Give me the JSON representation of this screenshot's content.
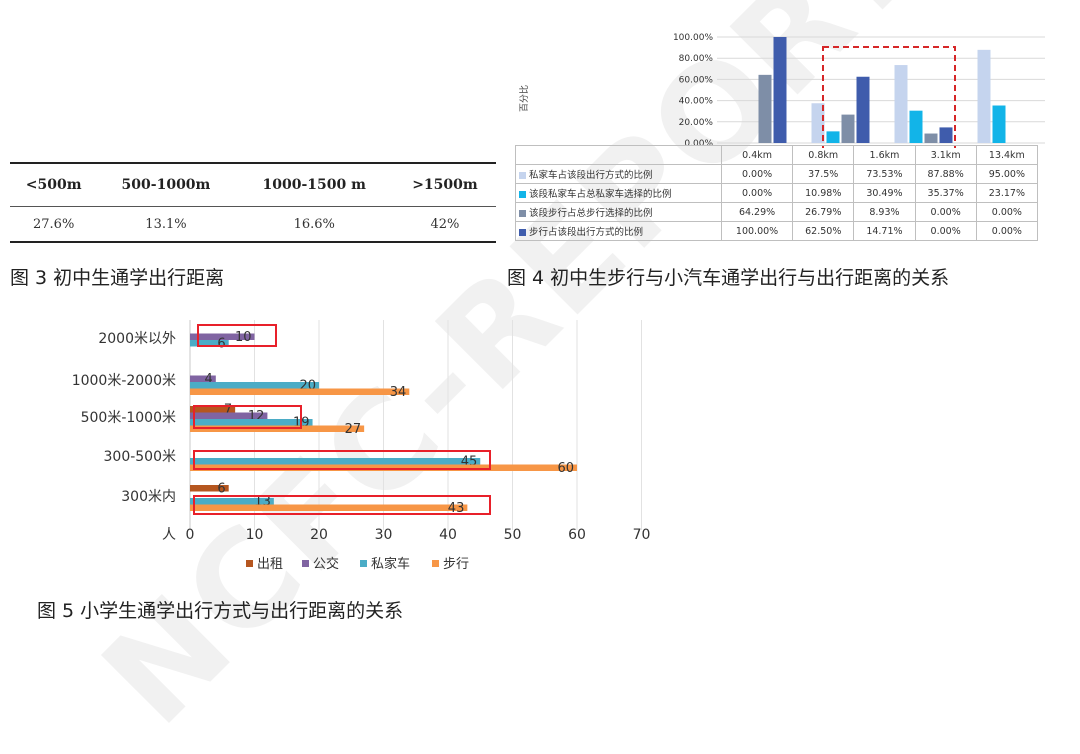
{
  "watermark": "NCFC-REPORT",
  "fig3": {
    "caption": "图 3 初中生通学出行距离",
    "headers": [
      "<500m",
      "500-1000m",
      "1000-1500 m",
      ">1500m"
    ],
    "values": [
      "27.6%",
      "13.1%",
      "16.6%",
      "42%"
    ]
  },
  "fig4": {
    "caption": "图 4 初中生步行与小汽车通学出行与出行距离的关系",
    "ylabel": "百分比",
    "chart_data": {
      "type": "bar",
      "categories": [
        "0.4km",
        "0.8km",
        "1.6km",
        "3.1km",
        "13.4km"
      ],
      "y_ticks": [
        "0.00%",
        "20.00%",
        "40.00%",
        "60.00%",
        "80.00%",
        "100.00%"
      ],
      "ylim": [
        0,
        100
      ],
      "series": [
        {
          "name": "私家车占该段出行方式的比例",
          "values": [
            0,
            37.5,
            73.53,
            87.88,
            95.0
          ],
          "labels": [
            "0.00%",
            "37.5%",
            "73.53%",
            "87.88%",
            "95.00%"
          ],
          "color": "#c5d4ee"
        },
        {
          "name": "该段私家车占总私家车选择的比例",
          "values": [
            0,
            10.98,
            30.49,
            35.37,
            23.17
          ],
          "labels": [
            "0.00%",
            "10.98%",
            "30.49%",
            "35.37%",
            "23.17%"
          ],
          "color": "#12b4e8"
        },
        {
          "name": "该段步行占总步行选择的比例",
          "values": [
            64.29,
            26.79,
            8.93,
            0,
            0
          ],
          "labels": [
            "64.29%",
            "26.79%",
            "8.93%",
            "0.00%",
            "0.00%"
          ],
          "color": "#7e8ea7"
        },
        {
          "name": "步行占该段出行方式的比例",
          "values": [
            100,
            62.5,
            14.71,
            0,
            0
          ],
          "labels": [
            "100.00%",
            "62.50%",
            "14.71%",
            "0.00%",
            "0.00%"
          ],
          "color": "#3f5cac"
        }
      ]
    }
  },
  "fig5": {
    "caption": "图 5  小学生通学出行方式与出行距离的关系",
    "chart_data": {
      "type": "bar",
      "orientation": "horizontal",
      "xlabel": "人",
      "xlim": [
        0,
        70
      ],
      "x_ticks": [
        0,
        10,
        20,
        30,
        40,
        50,
        60,
        70
      ],
      "grid": true,
      "legend_position": "bottom",
      "categories": [
        "2000米以外",
        "1000米-2000米",
        "500米-1000米",
        "300-500米",
        "300米内"
      ],
      "series": [
        {
          "name": "出租",
          "values": [
            0,
            0,
            7,
            0,
            6
          ],
          "labels": [
            "",
            "",
            "7",
            "",
            "6"
          ],
          "color": "#b5561f"
        },
        {
          "name": "公交",
          "values": [
            10,
            4,
            12,
            0,
            0
          ],
          "labels": [
            "10",
            "4",
            "12",
            "",
            ""
          ],
          "color": "#8064a2"
        },
        {
          "name": "私家车",
          "values": [
            6,
            20,
            19,
            45,
            13
          ],
          "labels": [
            "6",
            "20",
            "19",
            "45",
            "13"
          ],
          "color": "#4bacc6"
        },
        {
          "name": "步行",
          "values": [
            0,
            34,
            27,
            60,
            43
          ],
          "labels": [
            "",
            "34",
            "27",
            "60",
            "43"
          ],
          "color": "#f79646"
        }
      ]
    }
  }
}
